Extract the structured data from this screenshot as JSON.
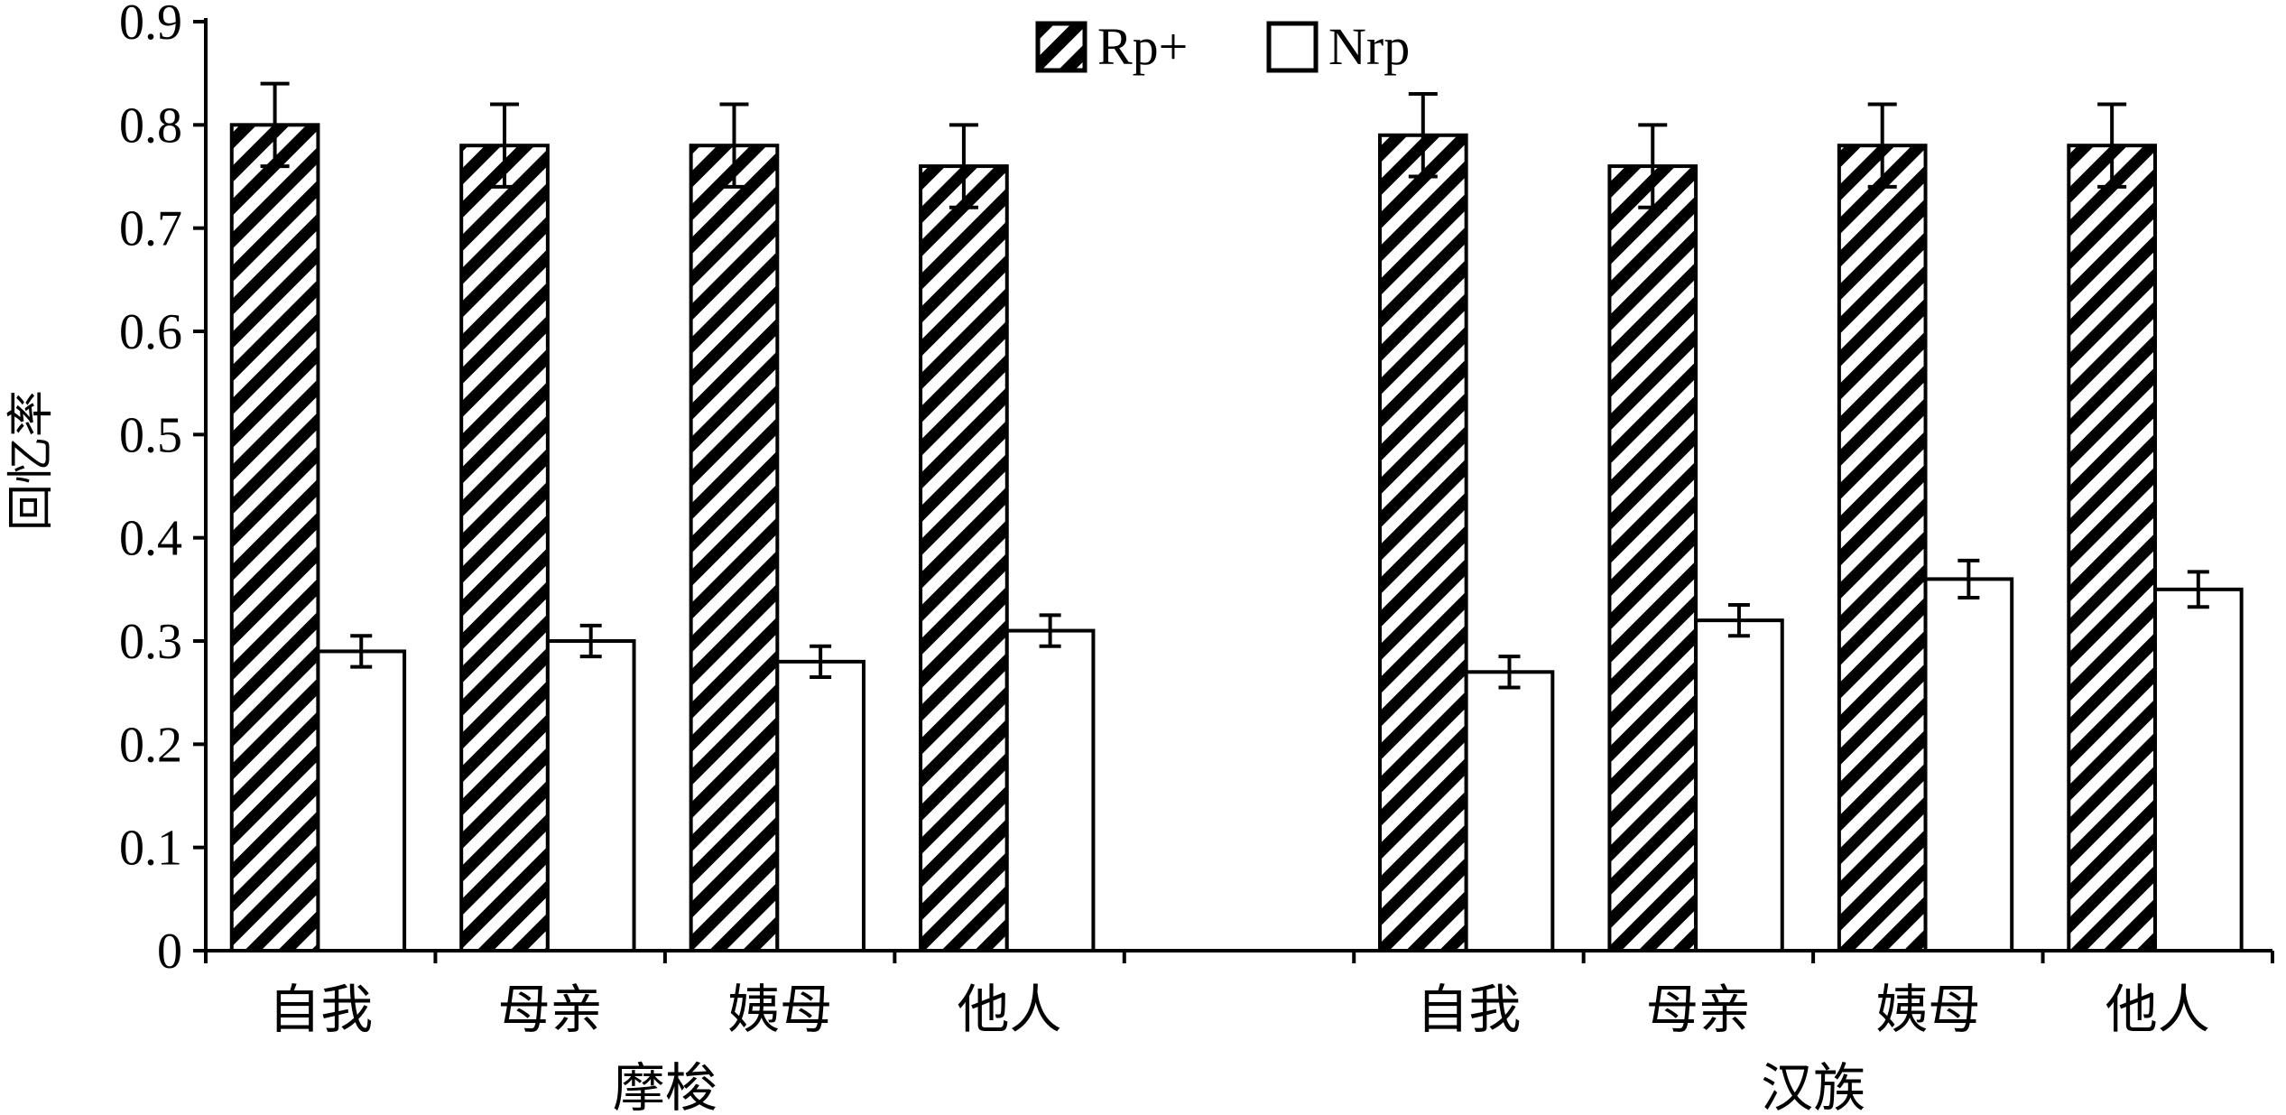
{
  "chart_data": {
    "type": "bar",
    "ylabel": "回忆率",
    "ylim": [
      0,
      0.9
    ],
    "yticks": [
      "0",
      "0.1",
      "0.2",
      "0.3",
      "0.4",
      "0.5",
      "0.6",
      "0.7",
      "0.8",
      "0.9"
    ],
    "grid": false,
    "legend_placement": "top-center",
    "groups": [
      {
        "label": "摩梭",
        "categories": [
          "自我",
          "母亲",
          "姨母",
          "他人"
        ]
      },
      {
        "label": "汉族",
        "categories": [
          "自我",
          "母亲",
          "姨母",
          "他人"
        ]
      }
    ],
    "series": [
      {
        "name": "Rp+",
        "pattern": "diagonal-hatch",
        "values": [
          0.8,
          0.78,
          0.78,
          0.76,
          0.79,
          0.76,
          0.78,
          0.78
        ],
        "errors": [
          0.04,
          0.04,
          0.04,
          0.04,
          0.04,
          0.04,
          0.04,
          0.04
        ]
      },
      {
        "name": "Nrp",
        "pattern": "solid-white",
        "values": [
          0.29,
          0.3,
          0.28,
          0.31,
          0.27,
          0.32,
          0.36,
          0.35
        ],
        "errors": [
          0.015,
          0.015,
          0.015,
          0.015,
          0.015,
          0.015,
          0.018,
          0.017
        ]
      }
    ],
    "colors": {
      "stroke": "#000000",
      "fill": "#ffffff"
    }
  }
}
